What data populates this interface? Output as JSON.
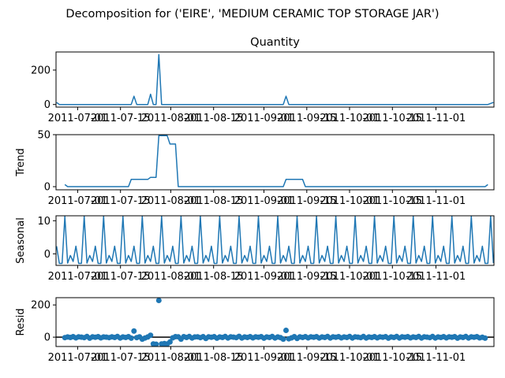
{
  "figure": {
    "suptitle": "Decomposition for ('EIRE', 'MEDIUM CERAMIC TOP STORAGE JAR')"
  },
  "chart_data": [
    {
      "type": "line",
      "title": "Quantity",
      "ylabel": "",
      "xlabel": "",
      "color": "#1f77b4",
      "x_tick_labels": [
        "2011-07-01",
        "2011-07-15",
        "2011-08-01",
        "2011-08-15",
        "2011-09-01",
        "2011-09-15",
        "2011-10-01",
        "2011-10-15",
        "2011-11-01"
      ],
      "y_ticks": [
        0,
        200
      ],
      "ylim": [
        -15,
        305
      ],
      "x_range_days": [
        -4.2,
        154.2
      ],
      "points": [
        [
          -4,
          12
        ],
        [
          -3,
          0
        ],
        [
          0,
          0
        ],
        [
          10,
          0
        ],
        [
          20,
          0
        ],
        [
          23,
          0
        ],
        [
          24,
          48
        ],
        [
          25,
          0
        ],
        [
          29,
          0
        ],
        [
          30,
          60
        ],
        [
          31,
          0
        ],
        [
          32,
          0
        ],
        [
          33,
          290
        ],
        [
          34,
          0
        ],
        [
          50,
          0
        ],
        [
          70,
          0
        ],
        [
          78,
          0
        ],
        [
          79,
          48
        ],
        [
          80,
          0
        ],
        [
          100,
          0
        ],
        [
          120,
          0
        ],
        [
          140,
          0
        ],
        [
          152,
          0
        ],
        [
          154,
          12
        ]
      ]
    },
    {
      "type": "line",
      "title": "",
      "ylabel": "Trend",
      "xlabel": "",
      "color": "#1f77b4",
      "x_tick_labels": [
        "2011-07-01",
        "2011-07-15",
        "2011-08-01",
        "2011-08-15",
        "2011-09-01",
        "2011-09-15",
        "2011-10-01",
        "2011-10-15",
        "2011-11-01"
      ],
      "y_ticks": [
        0,
        50
      ],
      "ylim": [
        -3,
        50
      ],
      "x_range_days": [
        -4.2,
        154.2
      ],
      "points": [
        [
          -1,
          2
        ],
        [
          0,
          0
        ],
        [
          10,
          0
        ],
        [
          22,
          0
        ],
        [
          23,
          7
        ],
        [
          29,
          7
        ],
        [
          30,
          9
        ],
        [
          32,
          9
        ],
        [
          33,
          49
        ],
        [
          36,
          49
        ],
        [
          37,
          41
        ],
        [
          39,
          41
        ],
        [
          40,
          0
        ],
        [
          60,
          0
        ],
        [
          78,
          0
        ],
        [
          79,
          7
        ],
        [
          85,
          7
        ],
        [
          86,
          0
        ],
        [
          120,
          0
        ],
        [
          151,
          0
        ],
        [
          152,
          2
        ]
      ]
    },
    {
      "type": "line",
      "title": "",
      "ylabel": "Seasonal",
      "xlabel": "",
      "color": "#1f77b4",
      "x_tick_labels": [
        "2011-07-01",
        "2011-07-15",
        "2011-08-01",
        "2011-08-15",
        "2011-09-01",
        "2011-09-15",
        "2011-10-01",
        "2011-10-15",
        "2011-11-01"
      ],
      "y_ticks": [
        0,
        10
      ],
      "ylim": [
        -3.5,
        11.5
      ],
      "x_range_days": [
        -4.2,
        154.2
      ],
      "period": 7,
      "period_start": -4,
      "pattern": [
        2.3,
        -2.9,
        -2.9,
        11.3,
        -2.8,
        -0.5,
        -2.3
      ],
      "x_end": 154.2
    },
    {
      "type": "scatter",
      "title": "",
      "ylabel": "Resid",
      "xlabel": "",
      "color": "#1f77b4",
      "x_tick_labels": [
        "2011-07-01",
        "2011-07-15",
        "2011-08-01",
        "2011-08-15",
        "2011-09-01",
        "2011-09-15",
        "2011-10-01",
        "2011-10-15",
        "2011-11-01"
      ],
      "y_ticks": [
        0,
        200
      ],
      "ylim": [
        -58,
        245
      ],
      "x_range_days": [
        -4.2,
        154.2
      ],
      "zero_line": true,
      "points": [
        [
          -1,
          -3
        ],
        [
          0,
          1
        ],
        [
          1,
          -2
        ],
        [
          2,
          3
        ],
        [
          3,
          -4
        ],
        [
          4,
          2
        ],
        [
          5,
          0
        ],
        [
          6,
          -3
        ],
        [
          7,
          4
        ],
        [
          8,
          -6
        ],
        [
          9,
          2
        ],
        [
          10,
          -1
        ],
        [
          11,
          3
        ],
        [
          12,
          -4
        ],
        [
          13,
          1
        ],
        [
          14,
          0
        ],
        [
          15,
          -3
        ],
        [
          16,
          2
        ],
        [
          17,
          -2
        ],
        [
          18,
          4
        ],
        [
          19,
          -5
        ],
        [
          20,
          1
        ],
        [
          21,
          -2
        ],
        [
          22,
          3
        ],
        [
          23,
          -6
        ],
        [
          24,
          38
        ],
        [
          25,
          -3
        ],
        [
          26,
          2
        ],
        [
          27,
          -12
        ],
        [
          28,
          -5
        ],
        [
          29,
          1
        ],
        [
          30,
          12
        ],
        [
          31,
          -42
        ],
        [
          32,
          -44
        ],
        [
          33,
          228
        ],
        [
          34,
          -42
        ],
        [
          35,
          -40
        ],
        [
          36,
          -42
        ],
        [
          37,
          -30
        ],
        [
          38,
          -4
        ],
        [
          39,
          3
        ],
        [
          40,
          2
        ],
        [
          41,
          -12
        ],
        [
          42,
          3
        ],
        [
          43,
          -2
        ],
        [
          44,
          4
        ],
        [
          45,
          -5
        ],
        [
          46,
          1
        ],
        [
          47,
          2
        ],
        [
          48,
          -3
        ],
        [
          49,
          3
        ],
        [
          50,
          -8
        ],
        [
          51,
          2
        ],
        [
          52,
          -1
        ],
        [
          53,
          3
        ],
        [
          54,
          -6
        ],
        [
          55,
          1
        ],
        [
          56,
          -2
        ],
        [
          57,
          4
        ],
        [
          58,
          -5
        ],
        [
          59,
          2
        ],
        [
          60,
          0
        ],
        [
          61,
          -3
        ],
        [
          62,
          5
        ],
        [
          63,
          -5
        ],
        [
          64,
          1
        ],
        [
          65,
          -2
        ],
        [
          66,
          3
        ],
        [
          67,
          -4
        ],
        [
          68,
          2
        ],
        [
          69,
          -1
        ],
        [
          70,
          3
        ],
        [
          71,
          -6
        ],
        [
          72,
          1
        ],
        [
          73,
          -2
        ],
        [
          74,
          4
        ],
        [
          75,
          -5
        ],
        [
          76,
          1
        ],
        [
          77,
          -3
        ],
        [
          78,
          -12
        ],
        [
          79,
          42
        ],
        [
          80,
          -10
        ],
        [
          81,
          -4
        ],
        [
          82,
          3
        ],
        [
          83,
          -8
        ],
        [
          84,
          2
        ],
        [
          85,
          -2
        ],
        [
          86,
          3
        ],
        [
          87,
          -4
        ],
        [
          88,
          2
        ],
        [
          89,
          -1
        ],
        [
          90,
          3
        ],
        [
          91,
          -5
        ],
        [
          92,
          1
        ],
        [
          93,
          -2
        ],
        [
          94,
          4
        ],
        [
          95,
          -5
        ],
        [
          96,
          2
        ],
        [
          97,
          -1
        ],
        [
          98,
          3
        ],
        [
          99,
          -4
        ],
        [
          100,
          1
        ],
        [
          101,
          -2
        ],
        [
          102,
          4
        ],
        [
          103,
          -5
        ],
        [
          104,
          2
        ],
        [
          105,
          0
        ],
        [
          106,
          -3
        ],
        [
          107,
          4
        ],
        [
          108,
          -5
        ],
        [
          109,
          1
        ],
        [
          110,
          -2
        ],
        [
          111,
          3
        ],
        [
          112,
          -4
        ],
        [
          113,
          2
        ],
        [
          114,
          -1
        ],
        [
          115,
          3
        ],
        [
          116,
          -6
        ],
        [
          117,
          1
        ],
        [
          118,
          -2
        ],
        [
          119,
          4
        ],
        [
          120,
          -5
        ],
        [
          121,
          2
        ],
        [
          122,
          -1
        ],
        [
          123,
          3
        ],
        [
          124,
          -4
        ],
        [
          125,
          1
        ],
        [
          126,
          -2
        ],
        [
          127,
          4
        ],
        [
          128,
          -5
        ],
        [
          129,
          2
        ],
        [
          130,
          0
        ],
        [
          131,
          -3
        ],
        [
          132,
          4
        ],
        [
          133,
          -5
        ],
        [
          134,
          1
        ],
        [
          135,
          -2
        ],
        [
          136,
          3
        ],
        [
          137,
          -4
        ],
        [
          138,
          2
        ],
        [
          139,
          -1
        ],
        [
          140,
          3
        ],
        [
          141,
          -6
        ],
        [
          142,
          1
        ],
        [
          143,
          -2
        ],
        [
          144,
          4
        ],
        [
          145,
          -5
        ],
        [
          146,
          2
        ],
        [
          147,
          -1
        ],
        [
          148,
          3
        ],
        [
          149,
          -4
        ],
        [
          150,
          -1
        ],
        [
          151,
          -6
        ]
      ]
    }
  ]
}
